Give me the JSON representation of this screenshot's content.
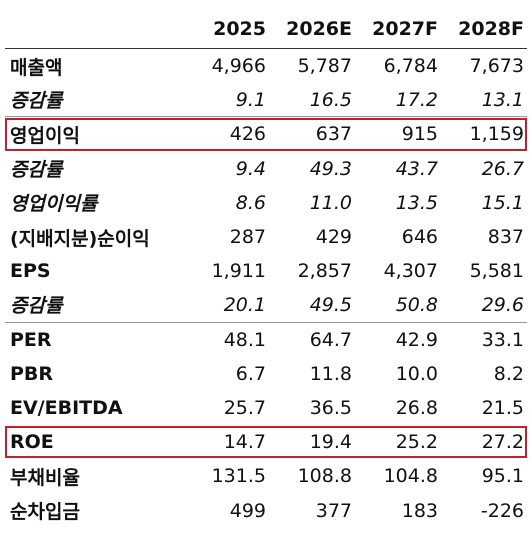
{
  "header": [
    "2025",
    "2026E",
    "2027F",
    "2028F"
  ],
  "rows": [
    {
      "label": "매출액",
      "values": [
        "4,966",
        "5,787",
        "6,784",
        "7,673"
      ],
      "italic": false,
      "boxed": false,
      "group_end": false
    },
    {
      "label": "증감률",
      "values": [
        "9.1",
        "16.5",
        "17.2",
        "13.1"
      ],
      "italic": true,
      "boxed": false,
      "group_end": true
    },
    {
      "label": "영업이익",
      "values": [
        "426",
        "637",
        "915",
        "1,159"
      ],
      "italic": false,
      "boxed": true,
      "group_end": false
    },
    {
      "label": "증감률",
      "values": [
        "9.4",
        "49.3",
        "43.7",
        "26.7"
      ],
      "italic": true,
      "boxed": false,
      "group_end": false
    },
    {
      "label": "영업이익률",
      "values": [
        "8.6",
        "11.0",
        "13.5",
        "15.1"
      ],
      "italic": true,
      "boxed": false,
      "group_end": false
    },
    {
      "label": "(지배지분)순이익",
      "values": [
        "287",
        "429",
        "646",
        "837"
      ],
      "italic": false,
      "boxed": false,
      "group_end": false
    },
    {
      "label": "EPS",
      "values": [
        "1,911",
        "2,857",
        "4,307",
        "5,581"
      ],
      "italic": false,
      "boxed": false,
      "group_end": false
    },
    {
      "label": "증감률",
      "values": [
        "20.1",
        "49.5",
        "50.8",
        "29.6"
      ],
      "italic": true,
      "boxed": false,
      "group_end": true
    },
    {
      "label": "PER",
      "values": [
        "48.1",
        "64.7",
        "42.9",
        "33.1"
      ],
      "italic": false,
      "boxed": false,
      "group_end": false
    },
    {
      "label": "PBR",
      "values": [
        "6.7",
        "11.8",
        "10.0",
        "8.2"
      ],
      "italic": false,
      "boxed": false,
      "group_end": false
    },
    {
      "label": "EV/EBITDA",
      "values": [
        "25.7",
        "36.5",
        "26.8",
        "21.5"
      ],
      "italic": false,
      "boxed": false,
      "group_end": false
    },
    {
      "label": "ROE",
      "values": [
        "14.7",
        "19.4",
        "25.2",
        "27.2"
      ],
      "italic": false,
      "boxed": true,
      "group_end": false
    },
    {
      "label": "부채비율",
      "values": [
        "131.5",
        "108.8",
        "104.8",
        "95.1"
      ],
      "italic": false,
      "boxed": false,
      "group_end": false
    },
    {
      "label": "순차입금",
      "values": [
        "499",
        "377",
        "183",
        "-226"
      ],
      "italic": false,
      "boxed": false,
      "group_end": false
    }
  ],
  "colors": {
    "highlight_box": "#c0212f",
    "rule": "#333333"
  }
}
